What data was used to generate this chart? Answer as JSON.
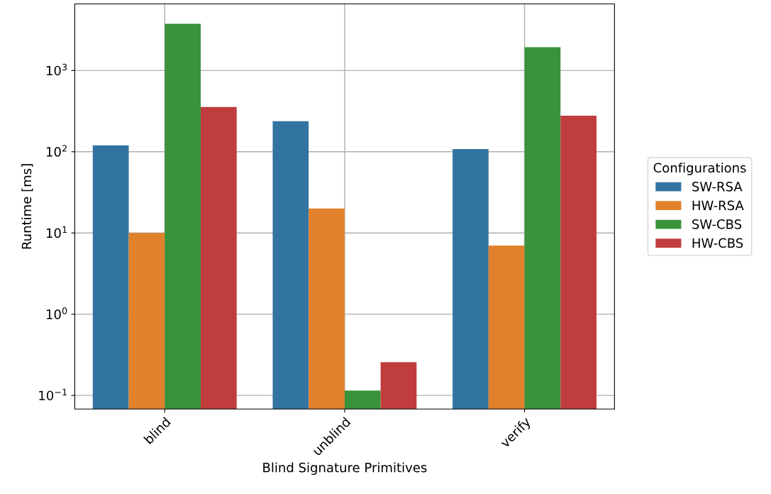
{
  "chart_data": {
    "type": "bar",
    "xlabel": "Blind Signature Primitives",
    "ylabel": "Runtime [ms]",
    "legend_title": "Configurations",
    "categories": [
      "blind",
      "unblind",
      "verify"
    ],
    "series": [
      {
        "name": "SW-RSA",
        "color": "#3274a1",
        "values": [
          120,
          238,
          108
        ]
      },
      {
        "name": "HW-RSA",
        "color": "#e1812c",
        "values": [
          10,
          20,
          7
        ]
      },
      {
        "name": "SW-CBS",
        "color": "#3a923a",
        "values": [
          3770,
          0.115,
          1940
        ]
      },
      {
        "name": "HW-CBS",
        "color": "#c03d3e",
        "values": [
          355,
          0.257,
          278
        ]
      }
    ],
    "log": "y",
    "ylim": [
      0.068,
      6600
    ],
    "yticks": [
      {
        "value": 0.1,
        "label": "10$^{−1}$"
      },
      {
        "value": 1,
        "label": "10$^{0}$"
      },
      {
        "value": 10,
        "label": "10$^{1}$"
      },
      {
        "value": 100,
        "label": "10$^{2}$"
      },
      {
        "value": 1000,
        "label": "10$^{3}$"
      }
    ],
    "grid": true,
    "legend": "right"
  }
}
